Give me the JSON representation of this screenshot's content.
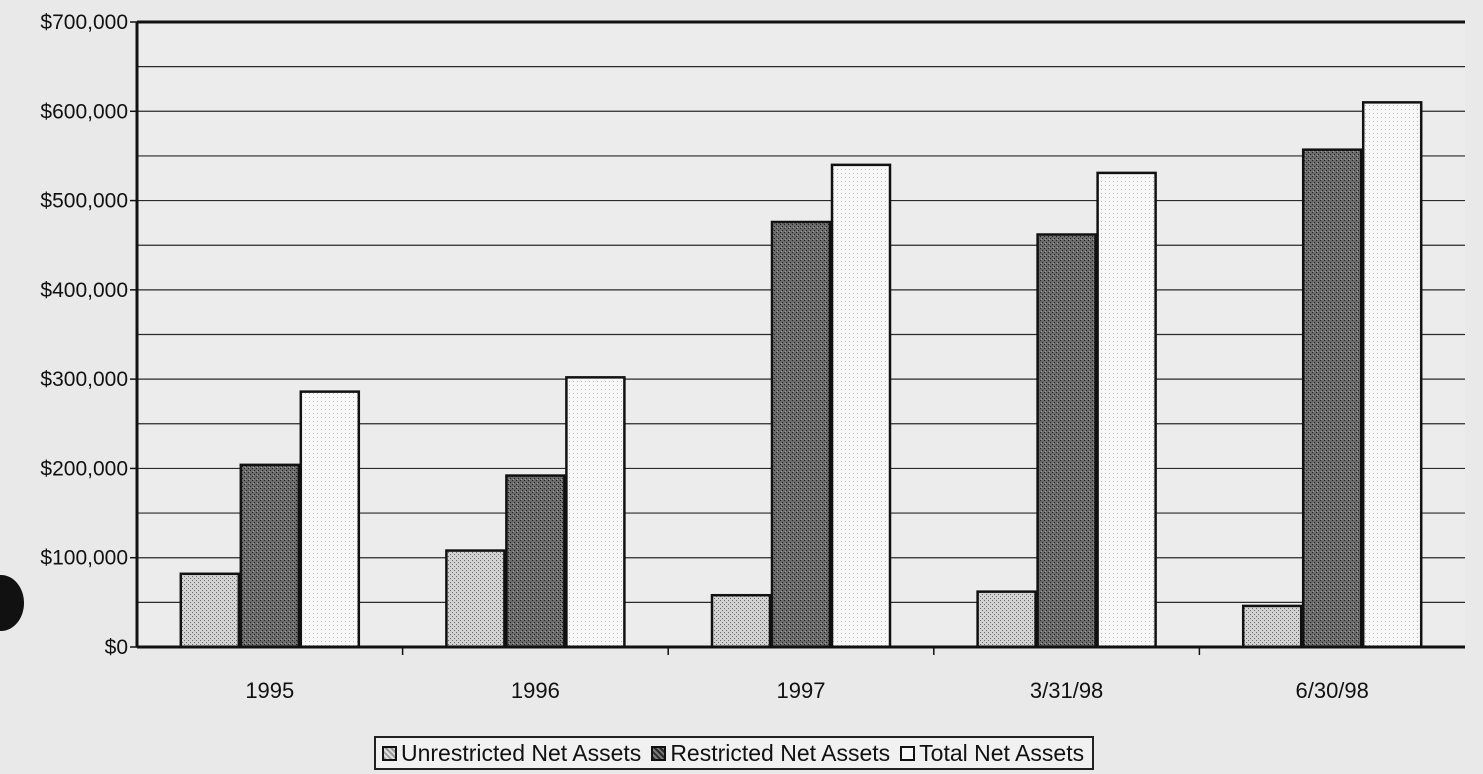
{
  "chart_data": {
    "type": "bar",
    "title": "",
    "xlabel": "",
    "ylabel": "",
    "categories": [
      "1995",
      "1996",
      "1997",
      "3/31/98",
      "6/30/98"
    ],
    "series": [
      {
        "name": "Unrestricted Net Assets",
        "values": [
          82000,
          108000,
          58000,
          62000,
          46000
        ],
        "color": "#c4c4c4"
      },
      {
        "name": "Restricted Net Assets",
        "values": [
          204000,
          192000,
          476000,
          462000,
          557000
        ],
        "color": "#575757"
      },
      {
        "name": "Total Net Assets",
        "values": [
          286000,
          302000,
          540000,
          531000,
          610000
        ],
        "color": "#f7f7f7"
      }
    ],
    "ylim": [
      0,
      700000
    ],
    "yticks": [
      "$700,000",
      "$600,000",
      "$500,000",
      "$400,000",
      "$300,000",
      "$200,000",
      "$100,000",
      "$0"
    ],
    "grid": true,
    "legend_position": "bottom"
  }
}
